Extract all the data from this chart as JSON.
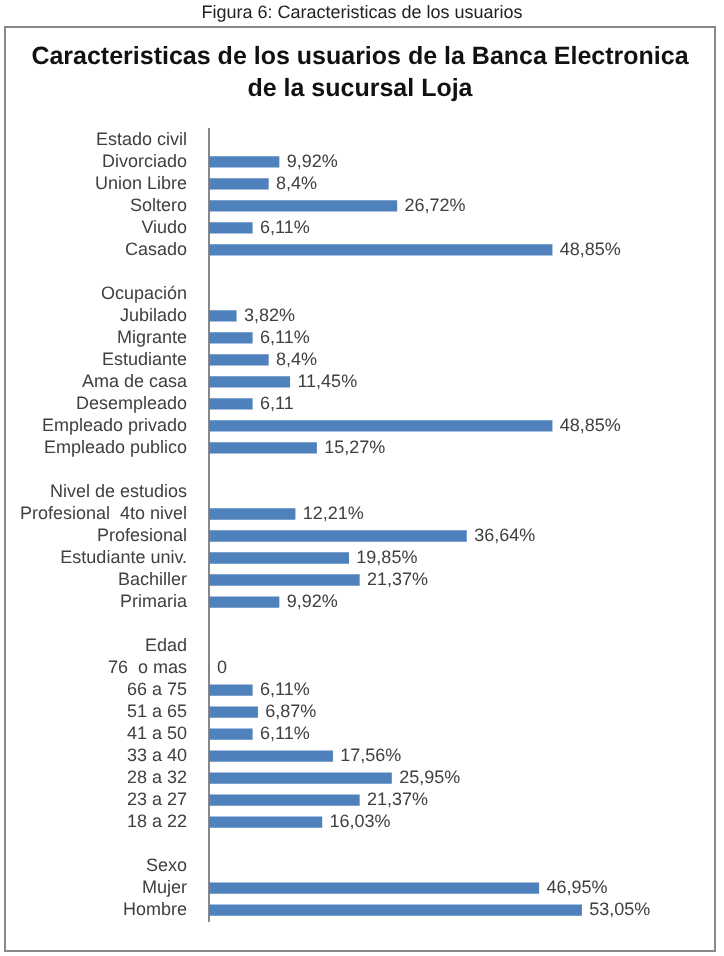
{
  "chart_data": {
    "type": "bar",
    "orientation": "horizontal",
    "title": "Caracteristicas de los  usuarios de la Banca Electronica de la sucursal Loja",
    "annotations": [
      "Figura 6: Caracteristicas de los  usuarios"
    ],
    "color": "#4f81bd",
    "legend": false,
    "tick_labels": "y",
    "categories": [
      "Estado civil",
      "Divorciado",
      "Union Libre",
      "Soltero",
      "Viudo",
      "Casado",
      null,
      "Ocupación",
      "Jubilado",
      "Migrante",
      "Estudiante",
      "Ama de casa",
      "Desempleado",
      "Empleado privado",
      "Empleado publico",
      null,
      "Nivel de estudios",
      "Profesional  4to nivel",
      "Profesional",
      "Estudiante univ.",
      "Bachiller",
      "Primaria",
      null,
      "Edad",
      "76  o mas",
      "66 a 75",
      "51 a 65",
      "41 a 50",
      "33 a 40",
      "28 a 32",
      "23 a 27",
      "18 a 22",
      null,
      "Sexo",
      "Mujer",
      "Hombre"
    ],
    "values": [
      null,
      9.92,
      8.4,
      26.72,
      6.11,
      48.85,
      null,
      null,
      3.82,
      6.11,
      8.4,
      11.45,
      6.11,
      48.85,
      15.27,
      null,
      null,
      12.21,
      36.64,
      19.85,
      21.37,
      9.92,
      null,
      null,
      0,
      6.11,
      6.87,
      6.11,
      17.56,
      25.95,
      21.37,
      16.03,
      null,
      null,
      46.95,
      53.05
    ],
    "value_labels": [
      null,
      "9,92%",
      "8,4%",
      "26,72%",
      "6,11%",
      "48,85%",
      null,
      null,
      "3,82%",
      "6,11%",
      "8,4%",
      "11,45%",
      "6,11",
      "48,85%",
      "15,27%",
      null,
      null,
      "12,21%",
      "36,64%",
      "19,85%",
      "21,37%",
      "9,92%",
      null,
      null,
      "0",
      "6,11%",
      "6,87%",
      "6,11%",
      "17,56%",
      "25,95%",
      "21,37%",
      "16,03%",
      null,
      null,
      "46,95%",
      "53,05%"
    ]
  }
}
